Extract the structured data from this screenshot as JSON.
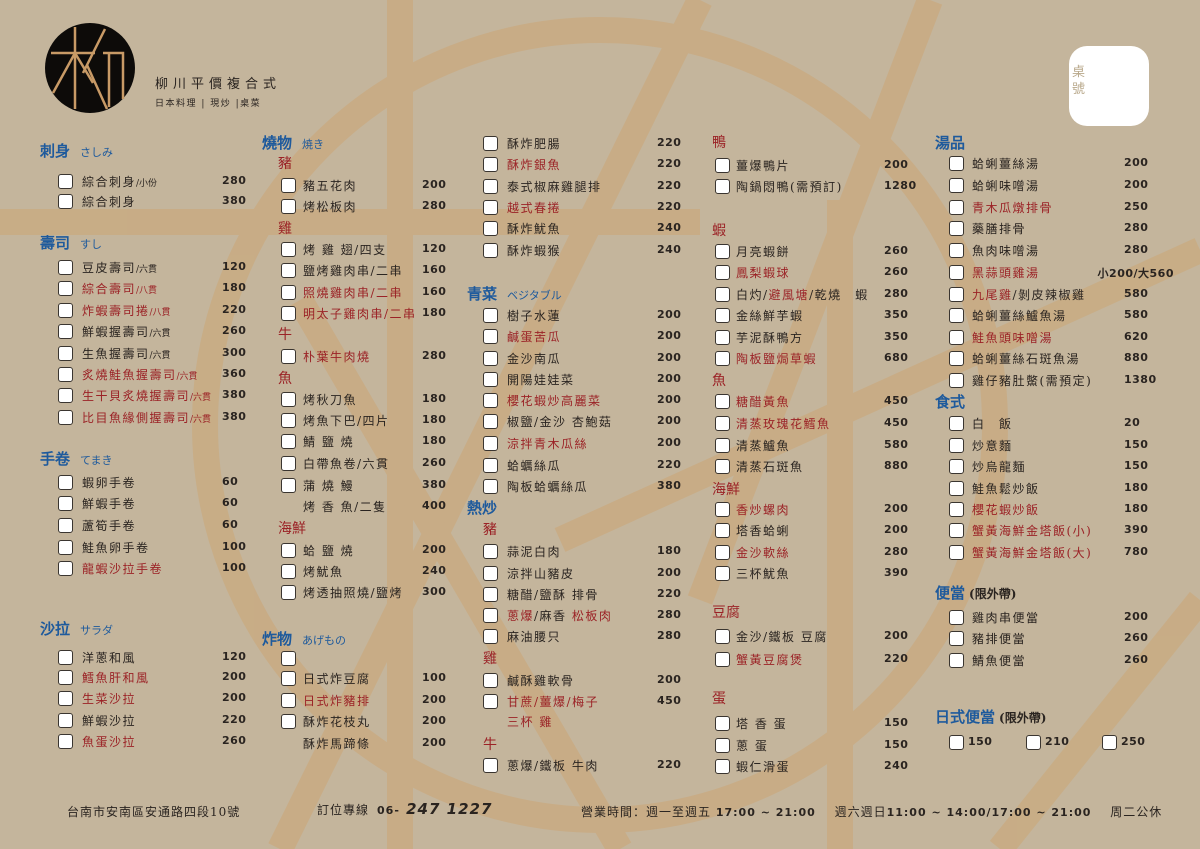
{
  "colors": {
    "background": "#c4b59c",
    "section_blue": "#1e5a9c",
    "highlight_red": "#9b2226",
    "watermark": "#c9ab83"
  },
  "header": {
    "brand": "柳川平價複合式",
    "tagline": "日本料理 | 現炒 |桌菜",
    "table_label": "桌號",
    "logo_glyph": "柳"
  },
  "columns": [
    {
      "entries": [
        {
          "type": "section",
          "text": "刺身",
          "jp": "さしみ"
        },
        {
          "type": "item",
          "name": "綜合刺身",
          "note": "/小份",
          "price": "280"
        },
        {
          "type": "item",
          "name": "綜合刺身",
          "price": "380"
        },
        {
          "type": "section",
          "text": "壽司",
          "jp": "すし"
        },
        {
          "type": "item",
          "name": "豆皮壽司",
          "note": "/六貫",
          "price": "120"
        },
        {
          "type": "item",
          "name": "綜合壽司",
          "note": "/八貫",
          "price": "180",
          "red": true
        },
        {
          "type": "item",
          "name": "炸蝦壽司捲",
          "note": "/八貫",
          "price": "220",
          "red": true
        },
        {
          "type": "item",
          "name": "鮮蝦握壽司",
          "note": "/六貫",
          "price": "260"
        },
        {
          "type": "item",
          "name": "生魚握壽司",
          "note": "/六貫",
          "price": "300"
        },
        {
          "type": "item",
          "name": "炙燒鮭魚握壽司",
          "note": "/六貫",
          "price": "360",
          "red": true
        },
        {
          "type": "item",
          "name": "生干貝炙燒握壽司",
          "note": "/六貫",
          "price": "380",
          "red": true
        },
        {
          "type": "item",
          "name": "比目魚緣側握壽司",
          "note": "/六貫",
          "price": "380",
          "red": true
        },
        {
          "type": "section",
          "text": "手卷",
          "jp": "てまき"
        },
        {
          "type": "item",
          "name": "蝦卵手卷",
          "price": "60"
        },
        {
          "type": "item",
          "name": "鮮蝦手卷",
          "price": "60"
        },
        {
          "type": "item",
          "name": "蘆筍手卷",
          "price": "60"
        },
        {
          "type": "item",
          "name": "鮭魚卵手卷",
          "price": "100"
        },
        {
          "type": "item",
          "name": "龍蝦沙拉手卷",
          "price": "100",
          "red": true
        },
        {
          "type": "section",
          "text": "沙拉",
          "jp": "サラダ"
        },
        {
          "type": "item",
          "name": "洋蔥和風",
          "price": "120"
        },
        {
          "type": "item",
          "name": "鱈魚肝和風",
          "price": "200",
          "red": true
        },
        {
          "type": "item",
          "name": "生菜沙拉",
          "price": "200",
          "red": true
        },
        {
          "type": "item",
          "name": "鮮蝦沙拉",
          "price": "220"
        },
        {
          "type": "item",
          "name": "魚蛋沙拉",
          "price": "260",
          "red": true
        }
      ]
    },
    {
      "entries": [
        {
          "type": "section",
          "text": "燒物",
          "jp": "焼き"
        },
        {
          "type": "sub",
          "text": "豬"
        },
        {
          "type": "item",
          "name": "豬五花肉",
          "price": "200"
        },
        {
          "type": "item",
          "name": "烤松板肉",
          "price": "280"
        },
        {
          "type": "sub",
          "text": "雞"
        },
        {
          "type": "item",
          "name": "烤 雞 翅/四支",
          "price": "120"
        },
        {
          "type": "item",
          "name": "鹽烤雞肉串/二串",
          "price": "160"
        },
        {
          "type": "item",
          "name": "照燒雞肉串/二串",
          "price": "160",
          "red": true
        },
        {
          "type": "item",
          "name": "明太子雞肉串/二串",
          "price": "180",
          "red": true
        },
        {
          "type": "sub",
          "text": "牛"
        },
        {
          "type": "item",
          "name": "朴葉牛肉燒",
          "price": "280",
          "red": true
        },
        {
          "type": "sub",
          "text": "魚"
        },
        {
          "type": "item",
          "name": "烤秋刀魚",
          "price": "180"
        },
        {
          "type": "item",
          "name": "烤魚下巴/四片",
          "price": "180"
        },
        {
          "type": "item",
          "name": "鯖 鹽 燒",
          "price": "180"
        },
        {
          "type": "item",
          "name": "白帶魚卷/六貫",
          "price": "260"
        },
        {
          "type": "item",
          "name": "蒲 燒 鰻",
          "price": "380"
        },
        {
          "type": "item",
          "name": "烤 香 魚/二隻",
          "price": "400",
          "nobox": true
        },
        {
          "type": "sub",
          "text": "海鮮"
        },
        {
          "type": "item",
          "name": "蛤 鹽 燒",
          "price": "200"
        },
        {
          "type": "item",
          "name": "烤魷魚",
          "price": "240"
        },
        {
          "type": "item",
          "name": "烤透抽照燒/鹽烤",
          "price": "300"
        },
        {
          "type": "section",
          "text": "炸物",
          "jp": "あげもの"
        },
        {
          "type": "item",
          "name": "",
          "price": ""
        },
        {
          "type": "item",
          "name": "日式炸豆腐",
          "price": "100"
        },
        {
          "type": "item",
          "name": "日式炸豬排",
          "price": "200",
          "red": true
        },
        {
          "type": "item",
          "name": "酥炸花枝丸",
          "price": "200"
        },
        {
          "type": "item",
          "name": "酥炸馬蹄條",
          "price": "200",
          "nobox": true
        }
      ]
    },
    {
      "entries": [
        {
          "type": "item",
          "name": "酥炸肥腸",
          "price": "220"
        },
        {
          "type": "item",
          "name": "酥炸銀魚",
          "price": "220",
          "red": true
        },
        {
          "type": "item",
          "name": "泰式椒麻雞腿排",
          "price": "220"
        },
        {
          "type": "item",
          "name": "越式春捲",
          "price": "220",
          "red": true
        },
        {
          "type": "item",
          "name": "酥炸魷魚",
          "price": "240"
        },
        {
          "type": "item",
          "name": "酥炸蝦猴",
          "price": "240"
        },
        {
          "type": "section",
          "text": "青菜",
          "jp": "ベジタブル"
        },
        {
          "type": "item",
          "name": "樹子水蓮",
          "price": "200"
        },
        {
          "type": "item",
          "name": "鹹蛋苦瓜",
          "price": "200",
          "red": true
        },
        {
          "type": "item",
          "name": "金沙南瓜",
          "price": "200"
        },
        {
          "type": "item",
          "name": "開陽娃娃菜",
          "price": "200"
        },
        {
          "type": "item",
          "name": "櫻花蝦炒高麗菜",
          "price": "200",
          "red": true
        },
        {
          "type": "item",
          "name": "椒鹽/金沙 杏鮑菇",
          "price": "200"
        },
        {
          "type": "item",
          "name": "涼拌青木瓜絲",
          "price": "200",
          "red": true
        },
        {
          "type": "item",
          "name": "蛤蠣絲瓜",
          "price": "220"
        },
        {
          "type": "item",
          "name": "陶板蛤蠣絲瓜",
          "price": "380"
        },
        {
          "type": "section",
          "text": "熱炒",
          "jp": ""
        },
        {
          "type": "sub",
          "text": "豬"
        },
        {
          "type": "item",
          "name": "蒜泥白肉",
          "price": "180"
        },
        {
          "type": "item",
          "name": "涼拌山豬皮",
          "price": "200"
        },
        {
          "type": "item",
          "name": "糖醋/鹽酥 排骨",
          "price": "220"
        },
        {
          "type": "item",
          "parts": [
            {
              "text": "蔥爆",
              "red": true
            },
            {
              "text": "/麻香 ",
              "red": false
            },
            {
              "text": "松板肉",
              "red": true
            }
          ],
          "price": "280"
        },
        {
          "type": "item",
          "name": "麻油腰只",
          "price": "280"
        },
        {
          "type": "sub",
          "text": "雞"
        },
        {
          "type": "item",
          "name": "鹹酥雞軟骨",
          "price": "200"
        },
        {
          "type": "item",
          "name": "甘蔗/薑爆/梅子",
          "price": "450",
          "red": true
        },
        {
          "type": "item",
          "name": "三杯 雞",
          "price": "",
          "red": true,
          "nobox": true
        },
        {
          "type": "sub",
          "text": "牛"
        },
        {
          "type": "item",
          "name": "蔥爆/鐵板 牛肉",
          "price": "220"
        }
      ]
    },
    {
      "entries": [
        {
          "type": "sub",
          "text": "鴨"
        },
        {
          "type": "item",
          "name": "薑爆鴨片",
          "price": "200"
        },
        {
          "type": "item",
          "name": "陶鍋悶鴨(需預訂)",
          "price": "1280"
        },
        {
          "type": "sub",
          "text": "蝦"
        },
        {
          "type": "item",
          "name": "月亮蝦餅",
          "price": "260"
        },
        {
          "type": "item",
          "name": "鳳梨蝦球",
          "price": "260",
          "red": true
        },
        {
          "type": "item",
          "parts": [
            {
              "text": "白灼/",
              "red": false
            },
            {
              "text": "避風塘",
              "red": true
            },
            {
              "text": "/乾燒　蝦",
              "red": false
            }
          ],
          "price": "280"
        },
        {
          "type": "item",
          "name": "金絲鮮芋蝦",
          "price": "350"
        },
        {
          "type": "item",
          "name": "芋泥酥鴨方",
          "price": "350"
        },
        {
          "type": "item",
          "name": "陶板鹽焗草蝦",
          "price": "680",
          "red": true
        },
        {
          "type": "sub",
          "text": "魚"
        },
        {
          "type": "item",
          "name": "糖醋黃魚",
          "price": "450",
          "red": true
        },
        {
          "type": "item",
          "name": "清蒸玫瑰花鱈魚",
          "price": "450",
          "red": true
        },
        {
          "type": "item",
          "name": "清蒸鱸魚",
          "price": "580"
        },
        {
          "type": "item",
          "name": "清蒸石斑魚",
          "price": "880"
        },
        {
          "type": "sub",
          "text": "海鮮"
        },
        {
          "type": "item",
          "name": "香炒螺肉",
          "price": "200",
          "red": true
        },
        {
          "type": "item",
          "name": "塔香蛤蜊",
          "price": "200"
        },
        {
          "type": "item",
          "name": "金沙軟絲",
          "price": "280",
          "red": true
        },
        {
          "type": "item",
          "name": "三杯魷魚",
          "price": "390"
        },
        {
          "type": "sub",
          "text": "豆腐"
        },
        {
          "type": "item",
          "name": "金沙/鐵板 豆腐",
          "price": "200"
        },
        {
          "type": "item",
          "name": "蟹黃豆腐煲",
          "price": "220",
          "red": true
        },
        {
          "type": "sub",
          "text": "蛋"
        },
        {
          "type": "item",
          "name": "塔 香 蛋",
          "price": "150"
        },
        {
          "type": "item",
          "name": "蔥 蛋",
          "price": "150"
        },
        {
          "type": "item",
          "name": "蝦仁滑蛋",
          "price": "240"
        }
      ]
    },
    {
      "entries": [
        {
          "type": "section",
          "text": "湯品",
          "jp": ""
        },
        {
          "type": "item",
          "name": "蛤蜊薑絲湯",
          "price": "200"
        },
        {
          "type": "item",
          "name": "蛤蜊味噌湯",
          "price": "200"
        },
        {
          "type": "item",
          "name": "青木瓜燉排骨",
          "price": "250",
          "red": true
        },
        {
          "type": "item",
          "name": "藥膳排骨",
          "price": "280"
        },
        {
          "type": "item",
          "name": "魚肉味噌湯",
          "price": "280"
        },
        {
          "type": "item",
          "name": "黑蒜頭雞湯",
          "price": "小200/大560",
          "red": true
        },
        {
          "type": "item",
          "parts": [
            {
              "text": "九尾雞",
              "red": true
            },
            {
              "text": "/剝皮辣椒雞",
              "red": false
            }
          ],
          "price": "580"
        },
        {
          "type": "item",
          "name": "蛤蜊薑絲鱸魚湯",
          "price": "580"
        },
        {
          "type": "item",
          "name": "鮭魚頭味噌湯",
          "price": "620",
          "red": true
        },
        {
          "type": "item",
          "name": "蛤蜊薑絲石斑魚湯",
          "price": "880"
        },
        {
          "type": "item",
          "name": "雞仔豬肚鱉(需預定)",
          "price": "1380"
        },
        {
          "type": "section",
          "text": "食式",
          "jp": ""
        },
        {
          "type": "item",
          "name": "白　飯",
          "price": "20"
        },
        {
          "type": "item",
          "name": "炒意麵",
          "price": "150"
        },
        {
          "type": "item",
          "name": "炒烏龍麵",
          "price": "150"
        },
        {
          "type": "item",
          "name": "鮭魚鬆炒飯",
          "price": "180"
        },
        {
          "type": "item",
          "name": "櫻花蝦炒飯",
          "price": "180",
          "red": true
        },
        {
          "type": "item",
          "name": "蟹黃海鮮金塔飯(小)",
          "price": "390",
          "red": true
        },
        {
          "type": "item",
          "name": "蟹黃海鮮金塔飯(大)",
          "price": "780",
          "red": true
        },
        {
          "type": "section",
          "text": "便當",
          "jp": "",
          "paren": "(限外帶)"
        },
        {
          "type": "item",
          "name": "雞肉串便當",
          "price": "200"
        },
        {
          "type": "item",
          "name": "豬排便當",
          "price": "260"
        },
        {
          "type": "item",
          "name": "鯖魚便當",
          "price": "260"
        },
        {
          "type": "section",
          "text": "日式便當",
          "jp": "",
          "paren": "(限外帶)"
        },
        {
          "type": "options",
          "values": [
            "150",
            "210",
            "250"
          ]
        }
      ]
    }
  ],
  "footer": {
    "address": "台南市安南區安通路四段10號",
    "phone_label": "訂位專線",
    "phone_prefix": "06-",
    "phone_number": "247 1227",
    "hours_label": "營業時間：週一至週五",
    "hours_weekday": "17:00 ~ 21:00",
    "weekend_label": "週六週日",
    "hours_weekend": "11:00 ~ 14:00/17:00 ~ 21:00",
    "closed": "周二公休"
  }
}
